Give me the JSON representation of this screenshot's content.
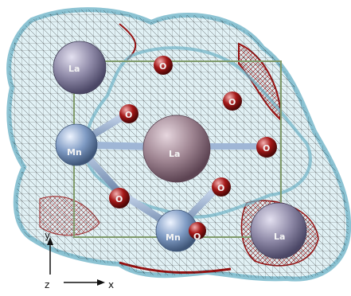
{
  "atoms": [
    {
      "id": "la-top-left",
      "element": "La",
      "label": "La",
      "color": "#8f8aa8"
    },
    {
      "id": "o-top",
      "element": "O",
      "label": "O",
      "color": "#8b1010"
    },
    {
      "id": "o-upper-right",
      "element": "O",
      "label": "O",
      "color": "#8b1010"
    },
    {
      "id": "o-upper-left",
      "element": "O",
      "label": "O",
      "color": "#8b1010"
    },
    {
      "id": "mn-left",
      "element": "Mn",
      "label": "Mn",
      "color": "#7f9bc4"
    },
    {
      "id": "la-center",
      "element": "La",
      "label": "La",
      "color": "#9f8592"
    },
    {
      "id": "o-right",
      "element": "O",
      "label": "O",
      "color": "#8b1010"
    },
    {
      "id": "o-lower-center",
      "element": "O",
      "label": "O",
      "color": "#8b1010"
    },
    {
      "id": "o-lower-left",
      "element": "O",
      "label": "O",
      "color": "#8b1010"
    },
    {
      "id": "mn-bottom",
      "element": "Mn",
      "label": "Mn",
      "color": "#7f9bc4"
    },
    {
      "id": "o-bottom",
      "element": "O",
      "label": "O",
      "color": "#8b1010"
    },
    {
      "id": "la-bottom-right",
      "element": "La",
      "label": "La",
      "color": "#8f8aa8"
    }
  ],
  "axes": {
    "y": "y",
    "z": "z",
    "x": "x"
  },
  "colors": {
    "surface_cyan": "#6fb4c8",
    "surface_red": "#9a1010",
    "mesh": "#1c1c1c",
    "cell_box": "#7f9a6a"
  }
}
